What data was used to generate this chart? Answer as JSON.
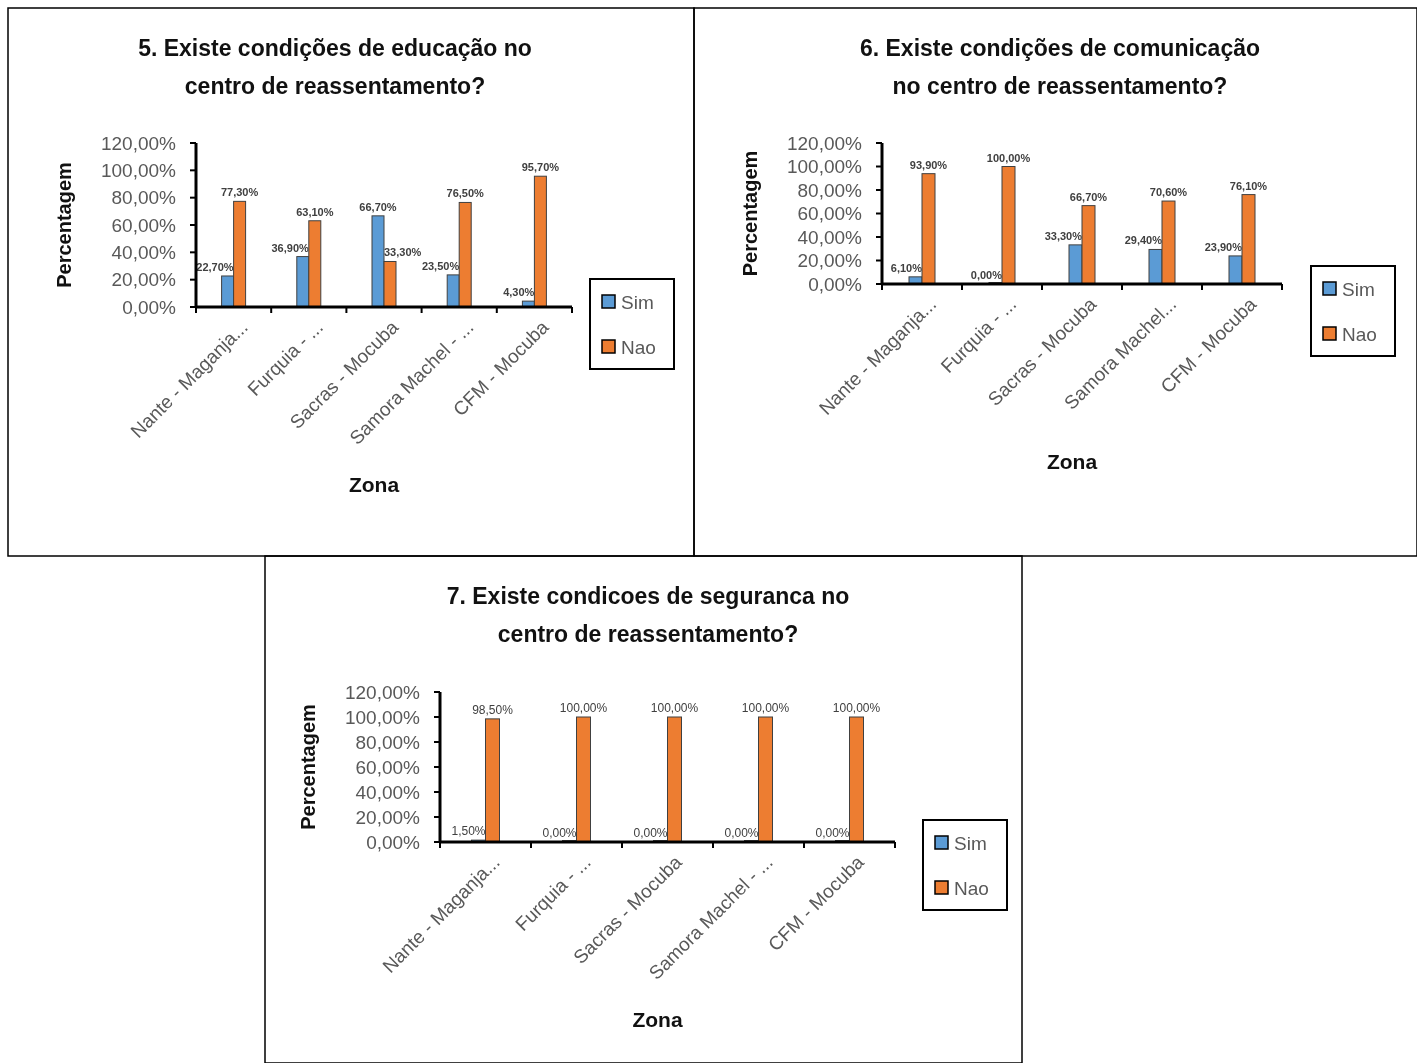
{
  "chart_data": [
    {
      "type": "bar",
      "title": "5. Existe condições de educação no centro de reassentamento?",
      "xlabel": "Zona",
      "ylabel": "Percentagem",
      "categories": [
        "Nante - Maganja...",
        "Furquia - ...",
        "Sacras - Mocuba",
        "Samora Machel - ...",
        "CFM - Mocuba"
      ],
      "series": [
        {
          "name": "Sim",
          "color": "#5b9bd5",
          "values": [
            22.7,
            36.9,
            66.7,
            23.5,
            4.3
          ],
          "value_labels": [
            "22,70%",
            "36,90%",
            "66,70%",
            "23,50%",
            "4,30%"
          ]
        },
        {
          "name": "Nao",
          "color": "#ed7d31",
          "values": [
            77.3,
            63.1,
            33.3,
            76.5,
            95.7
          ],
          "value_labels": [
            "77,30%",
            "63,10%",
            "33,30%",
            "76,50%",
            "95,70%"
          ]
        }
      ],
      "ylim": [
        0,
        120
      ],
      "yticks": [
        {
          "value": 0,
          "label": "0,00%"
        },
        {
          "value": 20,
          "label": "20,00%"
        },
        {
          "value": 40,
          "label": "40,00%"
        },
        {
          "value": 60,
          "label": "60,00%"
        },
        {
          "value": 80,
          "label": "80,00%"
        },
        {
          "value": 100,
          "label": "100,00%"
        },
        {
          "value": 120,
          "label": "120,00%"
        }
      ],
      "grid": false,
      "legend": "right"
    },
    {
      "type": "bar",
      "title": "6. Existe condições de comunicação no centro de reassentamento?",
      "xlabel": "Zona",
      "ylabel": "Percentagem",
      "categories": [
        "Nante - Maganja...",
        "Furquia - ...",
        "Sacras - Mocuba",
        "Samora Machel...",
        "CFM - Mocuba"
      ],
      "series": [
        {
          "name": "Sim",
          "color": "#5b9bd5",
          "values": [
            6.1,
            0,
            33.3,
            29.4,
            23.9
          ],
          "value_labels": [
            "6,10%",
            "0,00%",
            "33,30%",
            "29,40%",
            "23,90%"
          ]
        },
        {
          "name": "Nao",
          "color": "#ed7d31",
          "values": [
            93.9,
            100,
            66.7,
            70.6,
            76.1
          ],
          "value_labels": [
            "93,90%",
            "100,00%",
            "66,70%",
            "70,60%",
            "76,10%"
          ]
        }
      ],
      "ylim": [
        0,
        120
      ],
      "yticks": [
        {
          "value": 0,
          "label": "0,00%"
        },
        {
          "value": 20,
          "label": "20,00%"
        },
        {
          "value": 40,
          "label": "40,00%"
        },
        {
          "value": 60,
          "label": "60,00%"
        },
        {
          "value": 80,
          "label": "80,00%"
        },
        {
          "value": 100,
          "label": "100,00%"
        },
        {
          "value": 120,
          "label": "120,00%"
        }
      ],
      "grid": false,
      "legend": "right"
    },
    {
      "type": "bar",
      "title": "7. Existe condicoes de seguranca no centro de reassentamento?",
      "xlabel": "Zona",
      "ylabel": "Percentagem",
      "categories": [
        "Nante - Maganja...",
        "Furquia - ...",
        "Sacras - Mocuba",
        "Samora Machel - ...",
        "CFM - Mocuba"
      ],
      "series": [
        {
          "name": "Sim",
          "color": "#5b9bd5",
          "values": [
            1.5,
            0,
            0,
            0,
            0
          ],
          "value_labels": [
            "1,50%",
            "0,00%",
            "0,00%",
            "0,00%",
            "0,00%"
          ]
        },
        {
          "name": "Nao",
          "color": "#ed7d31",
          "values": [
            98.5,
            100,
            100,
            100,
            100
          ],
          "value_labels": [
            "98,50%",
            "100,00%",
            "100,00%",
            "100,00%",
            "100,00%"
          ]
        }
      ],
      "ylim": [
        0,
        120
      ],
      "yticks": [
        {
          "value": 0,
          "label": "0,00%"
        },
        {
          "value": 20,
          "label": "20,00%"
        },
        {
          "value": 40,
          "label": "40,00%"
        },
        {
          "value": 60,
          "label": "60,00%"
        },
        {
          "value": 80,
          "label": "80,00%"
        },
        {
          "value": 100,
          "label": "100,00%"
        },
        {
          "value": 120,
          "label": "120,00%"
        }
      ],
      "grid": false,
      "legend": "right"
    }
  ]
}
